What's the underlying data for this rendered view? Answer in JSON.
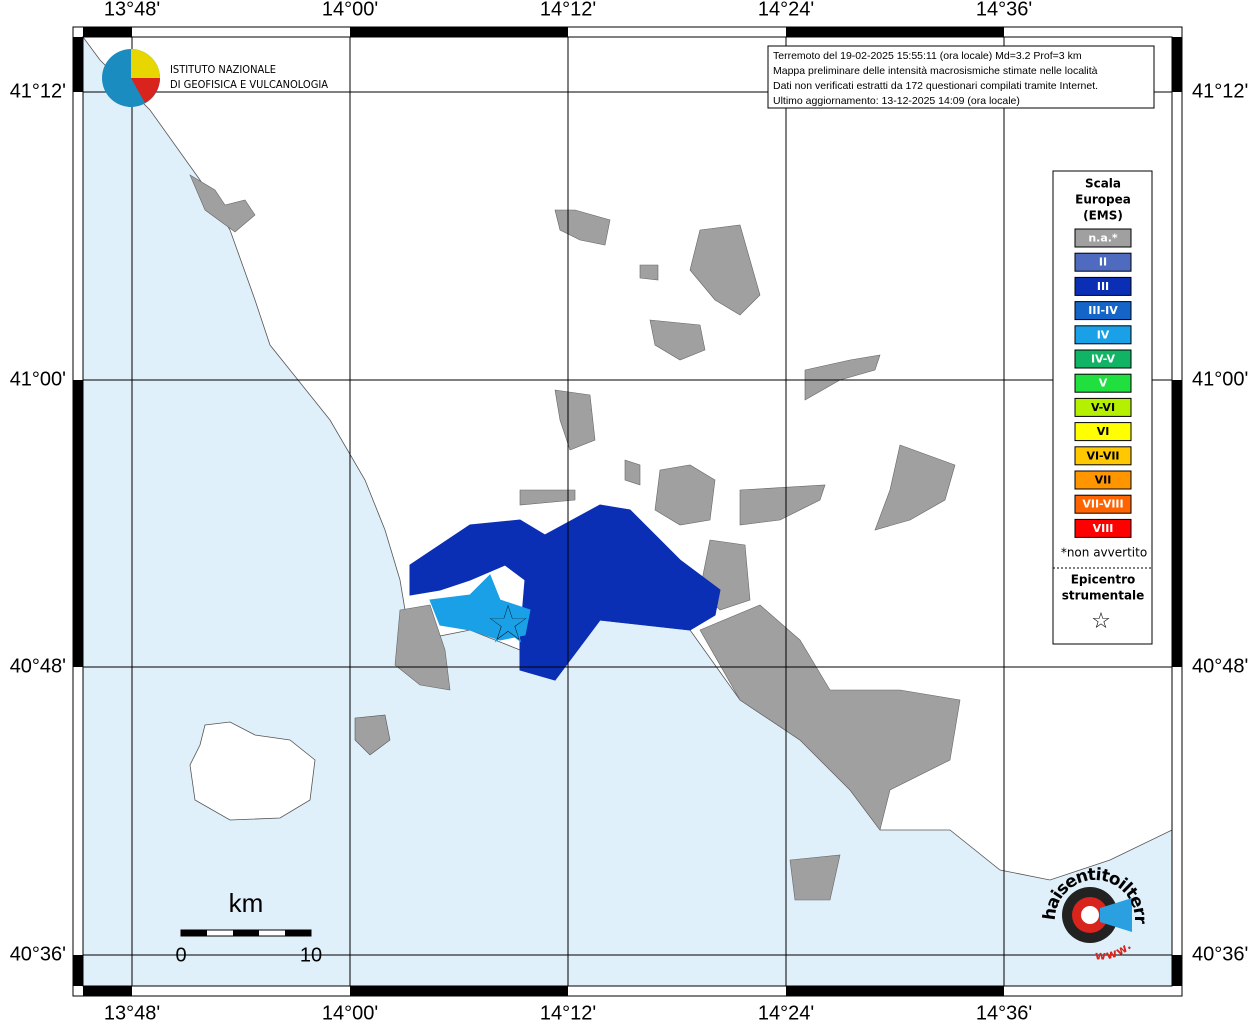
{
  "map": {
    "lon_labels": [
      "13°48'",
      "14°00'",
      "14°12'",
      "14°24'",
      "14°36'"
    ],
    "lat_labels": [
      "41°12'",
      "41°00'",
      "40°48'",
      "40°36'"
    ]
  },
  "info_box": {
    "lines": [
      "Terremoto del 19-02-2025 15:55:11 (ora locale) Md=3.2 Prof=3 km",
      "Mappa preliminare delle intensità macrosismiche stimate nelle località",
      "Dati non verificati estratti da 172 questionari compilati tramite Internet.",
      "Ultimo aggiornamento: 13-12-2025 14:09 (ora locale)"
    ]
  },
  "logo": {
    "line1": "ISTITUTO NAZIONALE",
    "line2": "DI GEOFISICA E VULCANOLOGIA"
  },
  "legend": {
    "title": [
      "Scala",
      "Europea",
      "(EMS)"
    ],
    "items": [
      {
        "label": "n.a.*",
        "color": "#a0a0a0"
      },
      {
        "label": "II",
        "color": "#4f6bbf"
      },
      {
        "label": "III",
        "color": "#0a2fb4"
      },
      {
        "label": "III-IV",
        "color": "#1565c9"
      },
      {
        "label": "IV",
        "color": "#1aa0e6"
      },
      {
        "label": "IV-V",
        "color": "#10b464"
      },
      {
        "label": "V",
        "color": "#20e040"
      },
      {
        "label": "V-VI",
        "color": "#b4f000"
      },
      {
        "label": "VI",
        "color": "#ffff00"
      },
      {
        "label": "VI-VII",
        "color": "#ffc800"
      },
      {
        "label": "VII",
        "color": "#ff9600"
      },
      {
        "label": "VII-VIII",
        "color": "#ff6400"
      },
      {
        "label": "VIII",
        "color": "#ff0000"
      }
    ],
    "note": "*non avvertito",
    "epicenter_title": [
      "Epicentro",
      "strumentale"
    ],
    "epicenter_symbol": "☆"
  },
  "scale_bar": {
    "unit": "km",
    "labels": [
      "0",
      "10"
    ]
  },
  "watermark": {
    "text": "haisentitoilterremoto.it",
    "prefix": "www."
  }
}
